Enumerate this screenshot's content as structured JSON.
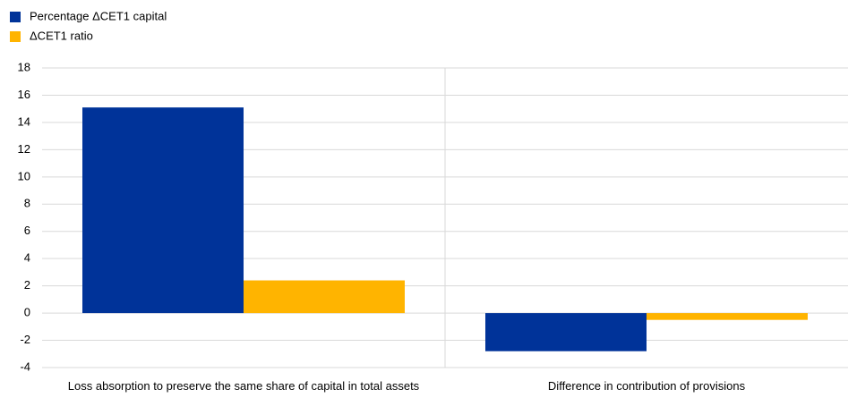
{
  "chart_data": {
    "type": "bar",
    "categories": [
      "Loss absorption to preserve the same share of capital in total assets",
      "Difference in contribution of provisions"
    ],
    "series": [
      {
        "name": "Percentage ΔCET1 capital",
        "color": "#003399",
        "values": [
          15.1,
          -2.8
        ]
      },
      {
        "name": "ΔCET1 ratio",
        "color": "#ffb400",
        "values": [
          2.4,
          -0.5
        ]
      }
    ],
    "ylim": [
      -4,
      18
    ],
    "yticks": [
      -4,
      -2,
      0,
      2,
      4,
      6,
      8,
      10,
      12,
      14,
      16,
      18
    ],
    "grid": true,
    "legend": "top-left"
  }
}
